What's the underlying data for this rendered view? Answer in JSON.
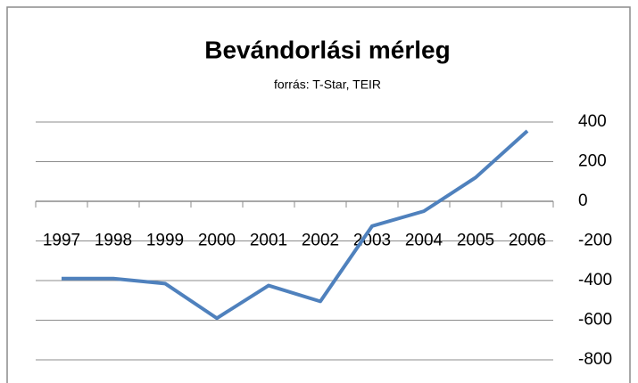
{
  "chart_data": {
    "type": "line",
    "title": "Bevándorlási mérleg",
    "subtitle": "forrás: T-Star, TEIR",
    "categories": [
      "1997",
      "1998",
      "1999",
      "2000",
      "2001",
      "2002",
      "2003",
      "2004",
      "2005",
      "2006"
    ],
    "values": [
      -390,
      -390,
      -415,
      -590,
      -425,
      -505,
      -125,
      -50,
      120,
      355
    ],
    "color": "#4f81bd",
    "ylim": [
      -800,
      400
    ],
    "yticks": [
      -800,
      -600,
      -400,
      -200,
      0,
      200,
      400
    ],
    "grid": true,
    "y_axis_side": "right"
  }
}
